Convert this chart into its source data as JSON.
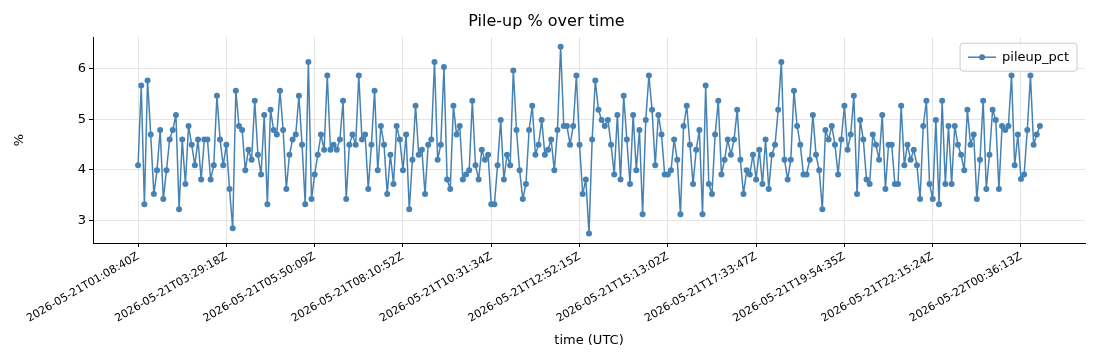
{
  "chart_data": {
    "type": "line",
    "title": "Pile-up % over time",
    "xlabel": "time (UTC)",
    "ylabel": "%",
    "categories": [
      "2026-05-21T01:08:40Z",
      null,
      null,
      null,
      null,
      null,
      null,
      null,
      null,
      null,
      null,
      null,
      null,
      null,
      null,
      null,
      null,
      null,
      null,
      null,
      null,
      null,
      null,
      null,
      null,
      null,
      null,
      null,
      "2026-05-21T03:29:18Z",
      null,
      null,
      null,
      null,
      null,
      null,
      null,
      null,
      null,
      null,
      null,
      null,
      null,
      null,
      null,
      null,
      null,
      null,
      null,
      null,
      null,
      null,
      null,
      null,
      null,
      null,
      null,
      "2026-05-21T05:50:09Z",
      null,
      null,
      null,
      null,
      null,
      null,
      null,
      null,
      null,
      null,
      null,
      null,
      null,
      null,
      null,
      null,
      null,
      null,
      null,
      null,
      null,
      null,
      null,
      null,
      null,
      null,
      null,
      "2026-05-21T08:10:52Z",
      null,
      null,
      null,
      null,
      null,
      null,
      null,
      null,
      null,
      null,
      null,
      null,
      null,
      null,
      null,
      null,
      null,
      null,
      null,
      null,
      null,
      null,
      null,
      null,
      null,
      null,
      null,
      "2026-05-21T10:31:34Z",
      null,
      null,
      null,
      null,
      null,
      null,
      null,
      null,
      null,
      null,
      null,
      null,
      null,
      null,
      null,
      null,
      null,
      null,
      null,
      null,
      null,
      null,
      null,
      null,
      null,
      null,
      null,
      "2026-05-21T12:52:15Z",
      null,
      null,
      null,
      null,
      null,
      null,
      null,
      null,
      null,
      null,
      null,
      null,
      null,
      null,
      null,
      null,
      null,
      null,
      null,
      null,
      null,
      null,
      null,
      null,
      null,
      null,
      null,
      "2026-05-21T15:13:02Z",
      null,
      null,
      null,
      null,
      null,
      null,
      null,
      null,
      null,
      null,
      null,
      null,
      null,
      null,
      null,
      null,
      null,
      null,
      null,
      null,
      null,
      null,
      null,
      null,
      null,
      null,
      null,
      "2026-05-21T17:33:47Z",
      null,
      null,
      null,
      null,
      null,
      null,
      null,
      null,
      null,
      null,
      null,
      null,
      null,
      null,
      null,
      null,
      null,
      null,
      null,
      null,
      null,
      null,
      null,
      null,
      null,
      null,
      null,
      "2026-05-21T19:54:35Z",
      null,
      null,
      null,
      null,
      null,
      null,
      null,
      null,
      null,
      null,
      null,
      null,
      null,
      null,
      null,
      null,
      null,
      null,
      null,
      null,
      null,
      null,
      null,
      null,
      null,
      null,
      null,
      "2026-05-21T22:15:24Z",
      null,
      null,
      null,
      null,
      null,
      null,
      null,
      null,
      null,
      null,
      null,
      null,
      null,
      null,
      null,
      null,
      null,
      null,
      null,
      null,
      null,
      null,
      null,
      null,
      null,
      null,
      null,
      "2026-05-22T00:36:13Z",
      null,
      null,
      null,
      null,
      null,
      null
    ],
    "series": [
      {
        "name": "pileup_pct",
        "color": "#4682b4",
        "values": [
          4.09,
          5.67,
          3.32,
          5.77,
          4.7,
          3.52,
          3.99,
          4.79,
          3.42,
          3.99,
          4.6,
          4.79,
          5.09,
          3.22,
          4.6,
          3.72,
          4.87,
          4.5,
          4.09,
          4.6,
          3.81,
          4.6,
          4.6,
          3.81,
          4.09,
          5.47,
          4.6,
          4.09,
          4.5,
          3.62,
          2.84,
          5.57,
          4.87,
          4.79,
          3.99,
          4.4,
          4.2,
          5.37,
          4.3,
          3.91,
          5.09,
          3.32,
          5.19,
          4.79,
          4.7,
          5.57,
          4.79,
          3.62,
          4.3,
          4.6,
          4.7,
          5.47,
          4.5,
          3.32,
          6.14,
          3.42,
          3.91,
          4.3,
          4.7,
          4.4,
          5.87,
          4.4,
          4.5,
          4.4,
          4.6,
          5.37,
          3.42,
          4.5,
          4.7,
          4.5,
          5.87,
          4.6,
          4.7,
          3.62,
          4.5,
          5.57,
          3.99,
          4.87,
          4.5,
          3.52,
          4.3,
          3.72,
          4.87,
          4.6,
          3.99,
          4.7,
          3.22,
          4.2,
          5.27,
          4.3,
          4.4,
          3.52,
          4.5,
          4.6,
          6.14,
          4.2,
          4.5,
          6.04,
          3.81,
          3.62,
          5.27,
          4.7,
          4.87,
          3.81,
          3.91,
          3.99,
          5.37,
          4.09,
          3.81,
          4.4,
          4.2,
          4.3,
          3.32,
          3.32,
          4.09,
          4.99,
          3.81,
          4.3,
          4.09,
          5.97,
          4.79,
          3.99,
          3.42,
          3.72,
          4.79,
          5.27,
          4.3,
          4.5,
          4.99,
          4.3,
          4.4,
          4.6,
          3.99,
          4.79,
          6.44,
          4.87,
          4.87,
          4.5,
          4.87,
          5.87,
          4.5,
          3.52,
          3.81,
          2.74,
          4.6,
          5.77,
          5.19,
          4.99,
          4.87,
          4.99,
          4.5,
          3.91,
          5.09,
          3.81,
          5.47,
          4.6,
          3.72,
          5.09,
          3.99,
          4.79,
          3.12,
          4.99,
          5.87,
          5.19,
          4.09,
          5.09,
          4.7,
          3.91,
          3.91,
          3.99,
          4.6,
          4.2,
          3.12,
          4.87,
          5.27,
          4.5,
          3.72,
          4.4,
          4.79,
          3.12,
          5.67,
          3.72,
          3.52,
          4.7,
          5.37,
          3.91,
          4.2,
          4.6,
          4.3,
          4.6,
          5.19,
          4.2,
          3.52,
          3.99,
          3.91,
          4.3,
          3.81,
          4.4,
          3.72,
          4.6,
          3.62,
          4.3,
          4.5,
          5.19,
          6.14,
          4.2,
          3.81,
          4.2,
          5.57,
          4.87,
          4.5,
          3.91,
          3.91,
          4.2,
          5.09,
          4.3,
          3.99,
          3.22,
          4.79,
          4.6,
          4.87,
          4.5,
          3.91,
          4.6,
          5.27,
          4.4,
          4.7,
          5.47,
          3.52,
          4.99,
          4.6,
          3.81,
          3.72,
          4.7,
          4.5,
          4.2,
          5.09,
          3.62,
          4.5,
          4.5,
          3.72,
          3.72,
          5.27,
          4.09,
          4.5,
          4.2,
          4.4,
          4.09,
          3.42,
          4.87,
          5.37,
          3.72,
          3.42,
          4.99,
          3.32,
          5.37,
          3.72,
          4.87,
          3.72,
          4.87,
          4.5,
          4.3,
          3.99,
          5.19,
          4.5,
          4.7,
          3.42,
          4.2,
          5.37,
          3.62,
          4.3,
          5.19,
          4.99,
          3.62,
          4.87,
          4.79,
          4.87,
          5.87,
          4.09,
          4.7,
          3.82,
          3.91,
          4.79,
          5.87,
          4.5,
          4.7,
          4.87
        ]
      }
    ],
    "ylim": [
      2.55,
      6.63
    ],
    "yticks": [
      3,
      4,
      5,
      6
    ],
    "grid": true,
    "legend": "top right",
    "marker": "circle",
    "line_style": "solid"
  }
}
